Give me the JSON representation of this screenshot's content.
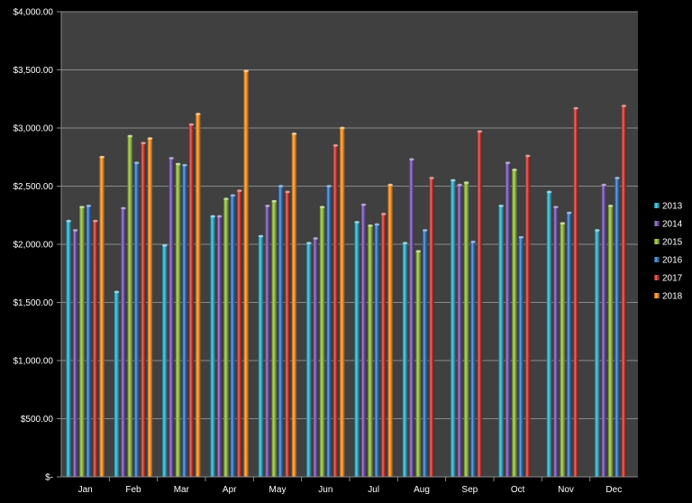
{
  "chart_data": {
    "type": "bar",
    "title": "",
    "xlabel": "",
    "ylabel": "",
    "categories": [
      "Jan",
      "Feb",
      "Mar",
      "Apr",
      "May",
      "Jun",
      "Jul",
      "Aug",
      "Sep",
      "Oct",
      "Nov",
      "Dec"
    ],
    "ylim": [
      0,
      4000
    ],
    "yticks": [
      0,
      500,
      1000,
      1500,
      2000,
      2500,
      3000,
      3500,
      4000
    ],
    "ytick_labels": [
      "$-",
      "$500.00",
      "$1,000.00",
      "$1,500.00",
      "$2,000.00",
      "$2,500.00",
      "$3,000.00",
      "$3,500.00",
      "$4,000.00"
    ],
    "grid": true,
    "legend_position": "right",
    "plot_background": "#404040",
    "page_background": "#000000",
    "series": [
      {
        "name": "2013",
        "color": "#2aa8c4",
        "values": [
          2200,
          1590,
          1990,
          2240,
          2070,
          2010,
          2190,
          2010,
          2550,
          2330,
          2450,
          2120
        ]
      },
      {
        "name": "2014",
        "color": "#6a4aa6",
        "values": [
          2120,
          2310,
          2740,
          2240,
          2330,
          2050,
          2340,
          2730,
          2510,
          2700,
          2320,
          2510
        ]
      },
      {
        "name": "2015",
        "color": "#8db63b",
        "values": [
          2320,
          2930,
          2690,
          2390,
          2370,
          2320,
          2160,
          1940,
          2530,
          2640,
          2180,
          2330
        ]
      },
      {
        "name": "2016",
        "color": "#2e6fb8",
        "values": [
          2330,
          2700,
          2680,
          2420,
          2500,
          2500,
          2170,
          2120,
          2020,
          2060,
          2270,
          2570
        ]
      },
      {
        "name": "2017",
        "color": "#c0302a",
        "values": [
          2200,
          2870,
          3030,
          2460,
          2450,
          2850,
          2260,
          2570,
          2970,
          2760,
          3170,
          3190
        ]
      },
      {
        "name": "2018",
        "color": "#f08a1e",
        "values": [
          2750,
          2910,
          3120,
          3490,
          2950,
          3000,
          2510,
          null,
          null,
          null,
          null,
          null
        ]
      }
    ]
  }
}
